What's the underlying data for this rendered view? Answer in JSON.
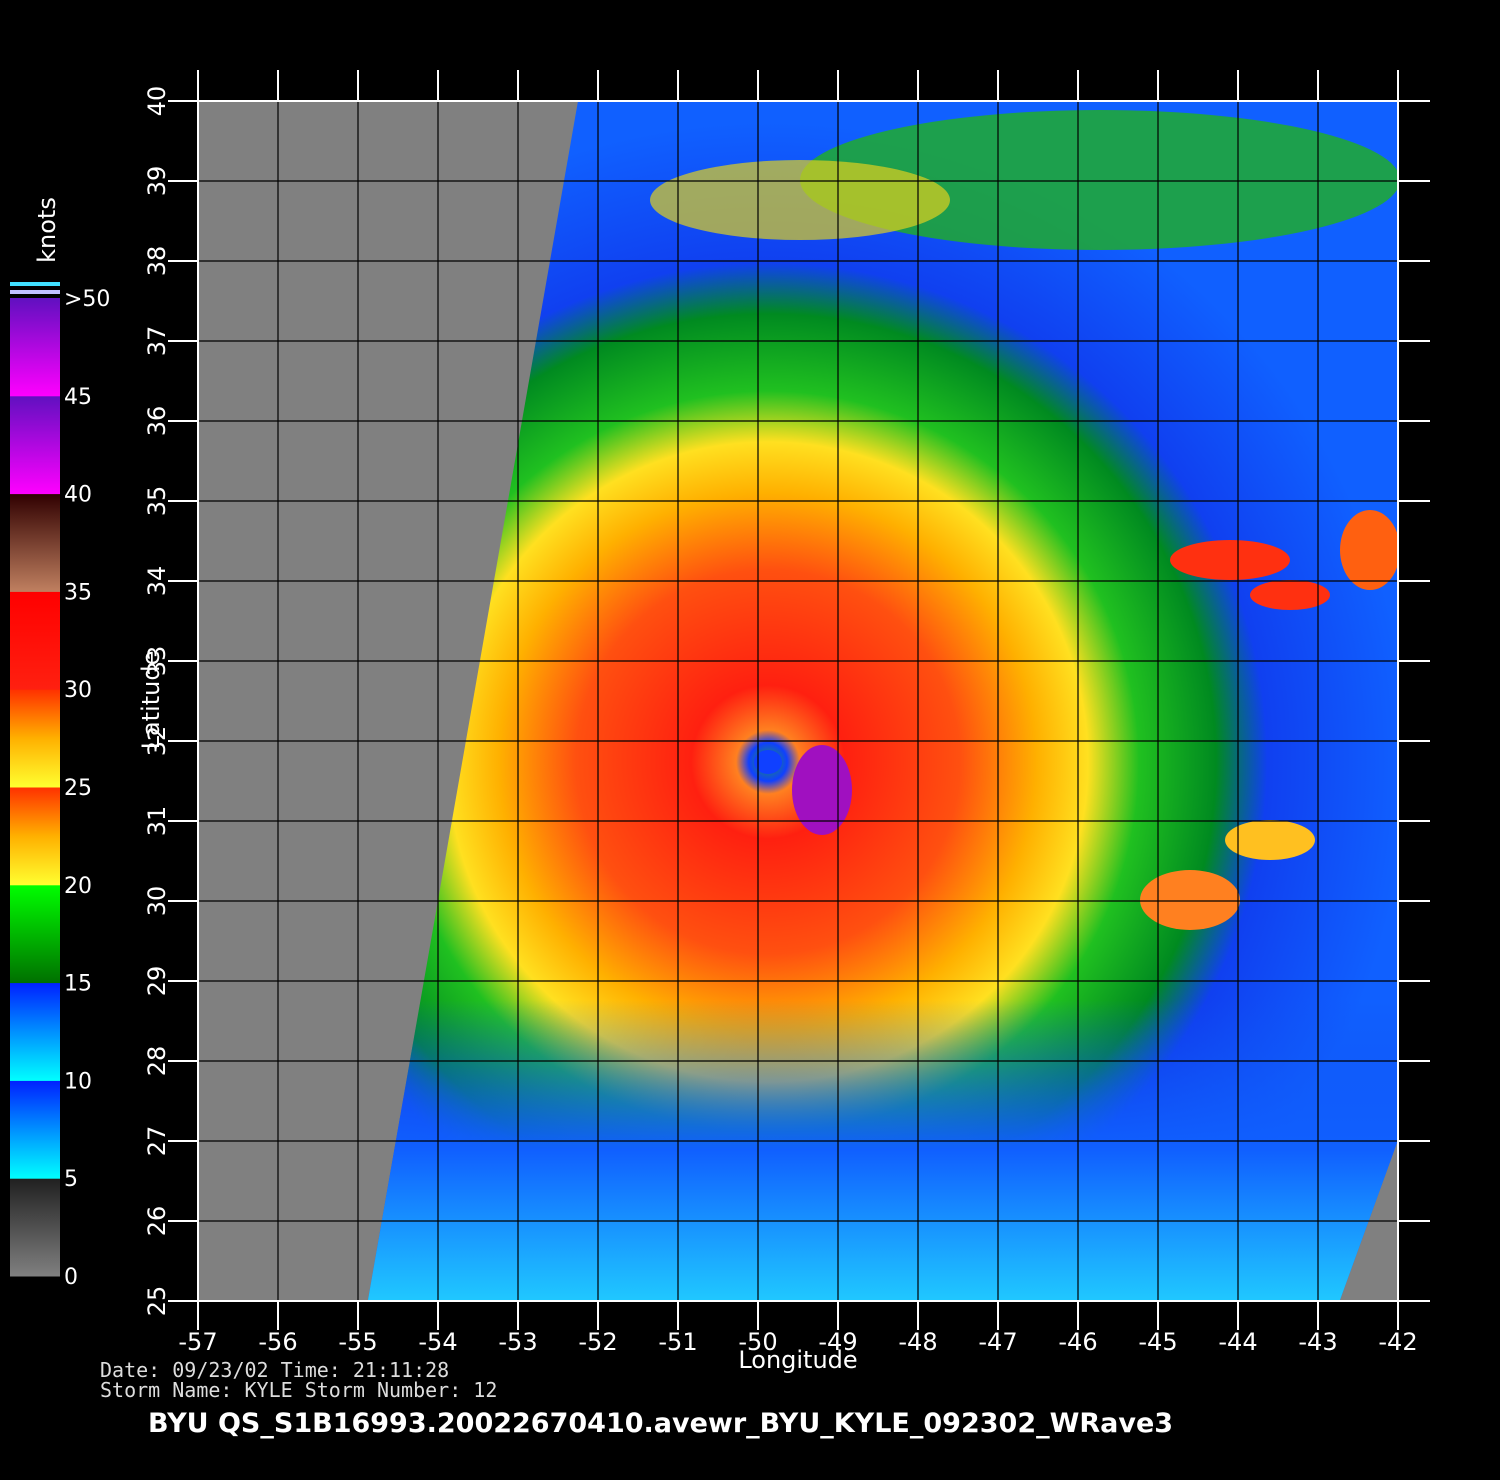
{
  "map": {
    "x_label": "Longitude",
    "y_label": "Latitude",
    "xlim": [
      -57,
      -42
    ],
    "ylim": [
      25,
      40
    ],
    "xticks": [
      -57,
      -56,
      -55,
      -54,
      -53,
      -52,
      -51,
      -50,
      -49,
      -48,
      -47,
      -46,
      -45,
      -44,
      -43,
      -42
    ],
    "yticks": [
      25,
      26,
      27,
      28,
      29,
      30,
      31,
      32,
      33,
      34,
      35,
      36,
      37,
      38,
      39,
      40
    ],
    "grid": true,
    "colorbar": {
      "label": "knots",
      "lim": [
        0,
        50
      ],
      "ticks": [
        0,
        5,
        10,
        15,
        20,
        25,
        30,
        35,
        40,
        45,
        {
          "value": 50,
          "label": ">50"
        }
      ]
    }
  },
  "footer": {
    "line1": "Date: 09/23/02   Time: 21:11:28",
    "line2": "Storm  Name: KYLE   Storm  Number: 12",
    "product": "BYU  QS_S1B16993.20022670410.avewr_BYU_KYLE_092302_WRave3"
  }
}
